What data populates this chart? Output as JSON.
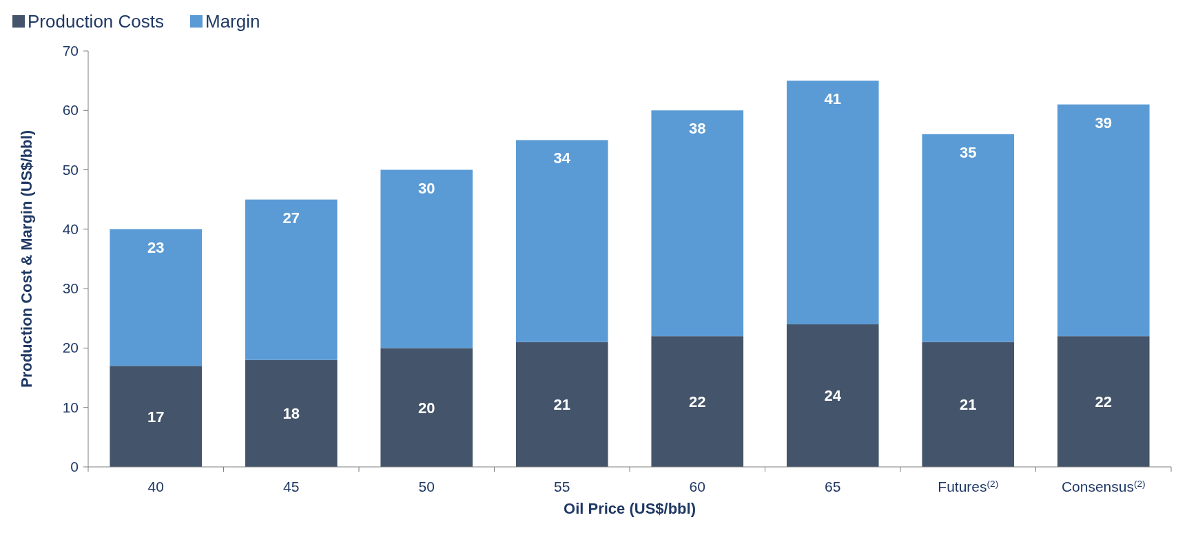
{
  "chart_data": {
    "type": "bar",
    "stacked": true,
    "xlabel": "Oil Price (US$/bbl)",
    "ylabel": "Production Cost & Margin (US$/bbl)",
    "categories": [
      "40",
      "45",
      "50",
      "55",
      "60",
      "65",
      "Futures$^{(2)}$",
      "Consensus$^{(2)}$"
    ],
    "series": [
      {
        "name": "Production Costs",
        "color": "#44546a",
        "values": [
          17,
          18,
          20,
          21,
          22,
          24,
          21,
          22
        ]
      },
      {
        "name": "Margin",
        "color": "#5b9bd5",
        "values": [
          23,
          27,
          30,
          34,
          38,
          41,
          35,
          39
        ]
      }
    ],
    "ylim": [
      0,
      70
    ],
    "yticks": [
      0,
      10,
      20,
      30,
      40,
      50,
      60,
      70
    ],
    "data_labels": true,
    "legend": "top left",
    "grid": false
  }
}
